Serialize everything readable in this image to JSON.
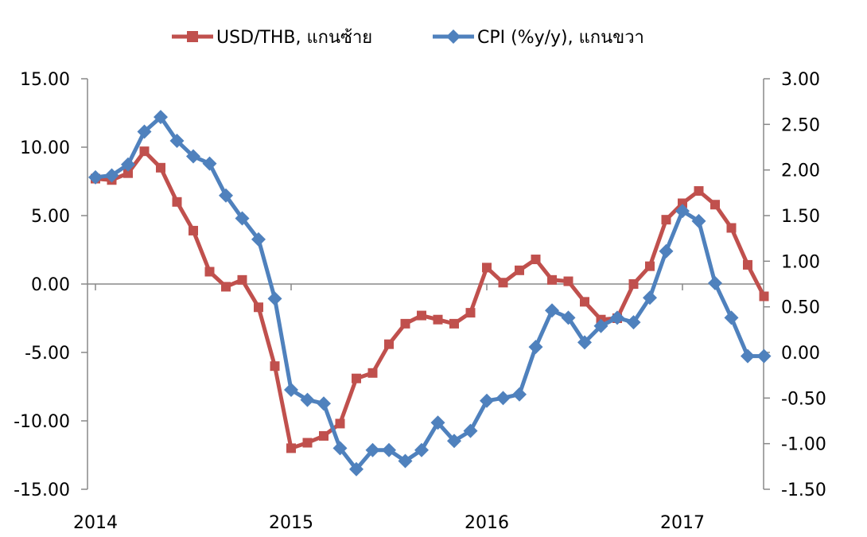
{
  "chart_data": {
    "type": "line",
    "title": "",
    "legend_position": "top",
    "grid": false,
    "x_ticks": [
      "2014",
      "2015",
      "2016",
      "2017"
    ],
    "left_axis": {
      "ylim": [
        -15,
        15
      ],
      "ticks": [
        "15.00",
        "10.00",
        "5.00",
        "0.00",
        "-5.00",
        "-10.00",
        "-15.00"
      ]
    },
    "right_axis": {
      "ylim": [
        -1.5,
        3.0
      ],
      "ticks": [
        "3.00",
        "2.50",
        "2.00",
        "1.50",
        "1.00",
        "0.50",
        "0.00",
        "-0.50",
        "-1.00",
        "-1.50"
      ]
    },
    "series": [
      {
        "name": "USD/THB, แกนซ้าย",
        "axis": "left",
        "color": "#c0504d",
        "marker": "square",
        "values": [
          7.7,
          7.6,
          8.1,
          9.7,
          8.5,
          6.0,
          3.9,
          0.9,
          -0.2,
          0.3,
          -1.7,
          -6.0,
          -12.0,
          -11.6,
          -11.1,
          -10.2,
          -6.9,
          -6.5,
          -4.4,
          -2.9,
          -2.3,
          -2.6,
          -2.9,
          -2.1,
          1.2,
          0.1,
          1.0,
          1.8,
          0.3,
          0.2,
          -1.3,
          -2.6,
          -2.5,
          0.0,
          1.3,
          4.7,
          5.9,
          6.8,
          5.8,
          4.1,
          1.4,
          -0.9
        ]
      },
      {
        "name": "CPI (%y/y), แกนขวา",
        "axis": "right",
        "color": "#4f81bd",
        "marker": "diamond",
        "values": [
          1.92,
          1.94,
          2.06,
          2.42,
          2.58,
          2.32,
          2.15,
          2.07,
          1.72,
          1.47,
          1.24,
          0.59,
          -0.41,
          -0.52,
          -0.56,
          -1.05,
          -1.28,
          -1.07,
          -1.07,
          -1.19,
          -1.07,
          -0.77,
          -0.97,
          -0.86,
          -0.53,
          -0.5,
          -0.46,
          0.06,
          0.46,
          0.38,
          0.11,
          0.29,
          0.38,
          0.33,
          0.6,
          1.11,
          1.55,
          1.44,
          0.76,
          0.38,
          -0.04,
          -0.04
        ]
      }
    ]
  }
}
